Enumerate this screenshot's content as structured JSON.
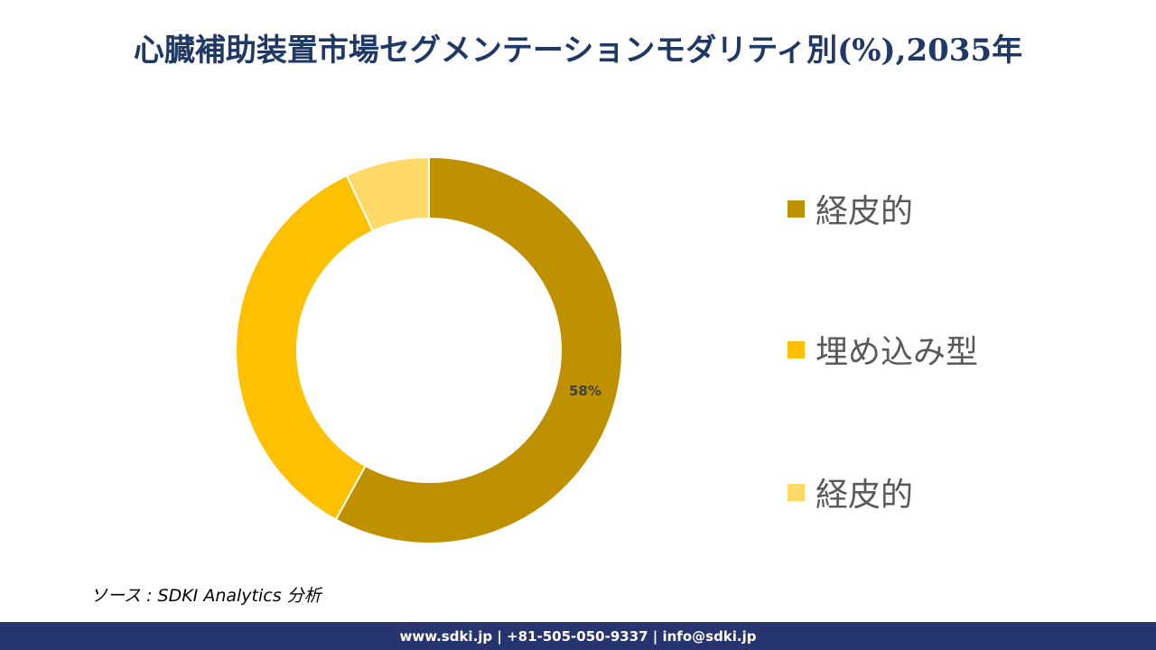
{
  "header": {
    "title": "心臓補助装置市場セグメンテーションモダリティ別(%),2035年"
  },
  "chart_data": {
    "type": "pie",
    "subtype": "donut",
    "title": "心臓補助装置市場セグメンテーションモダリティ別(%),2035年",
    "categories": [
      "経皮的",
      "埋め込み型",
      "経皮的"
    ],
    "values": [
      58,
      35,
      7
    ],
    "colors": [
      "#BF9000",
      "#FFC000",
      "#FFD966"
    ],
    "data_labels": [
      "58%",
      "",
      ""
    ],
    "start_angle": "12 o'clock, clockwise",
    "legend_position": "right"
  },
  "legend": {
    "items": [
      {
        "label": "経皮的",
        "color": "#BF9000"
      },
      {
        "label": "埋め込み型",
        "color": "#FFC000"
      },
      {
        "label": "経皮的",
        "color": "#FFD966"
      }
    ]
  },
  "source": {
    "text": "ソース : SDKI Analytics  分析"
  },
  "footer": {
    "text": "www.sdki.jp | +81-505-050-9337 | info@sdki.jp",
    "background": "#263470"
  }
}
